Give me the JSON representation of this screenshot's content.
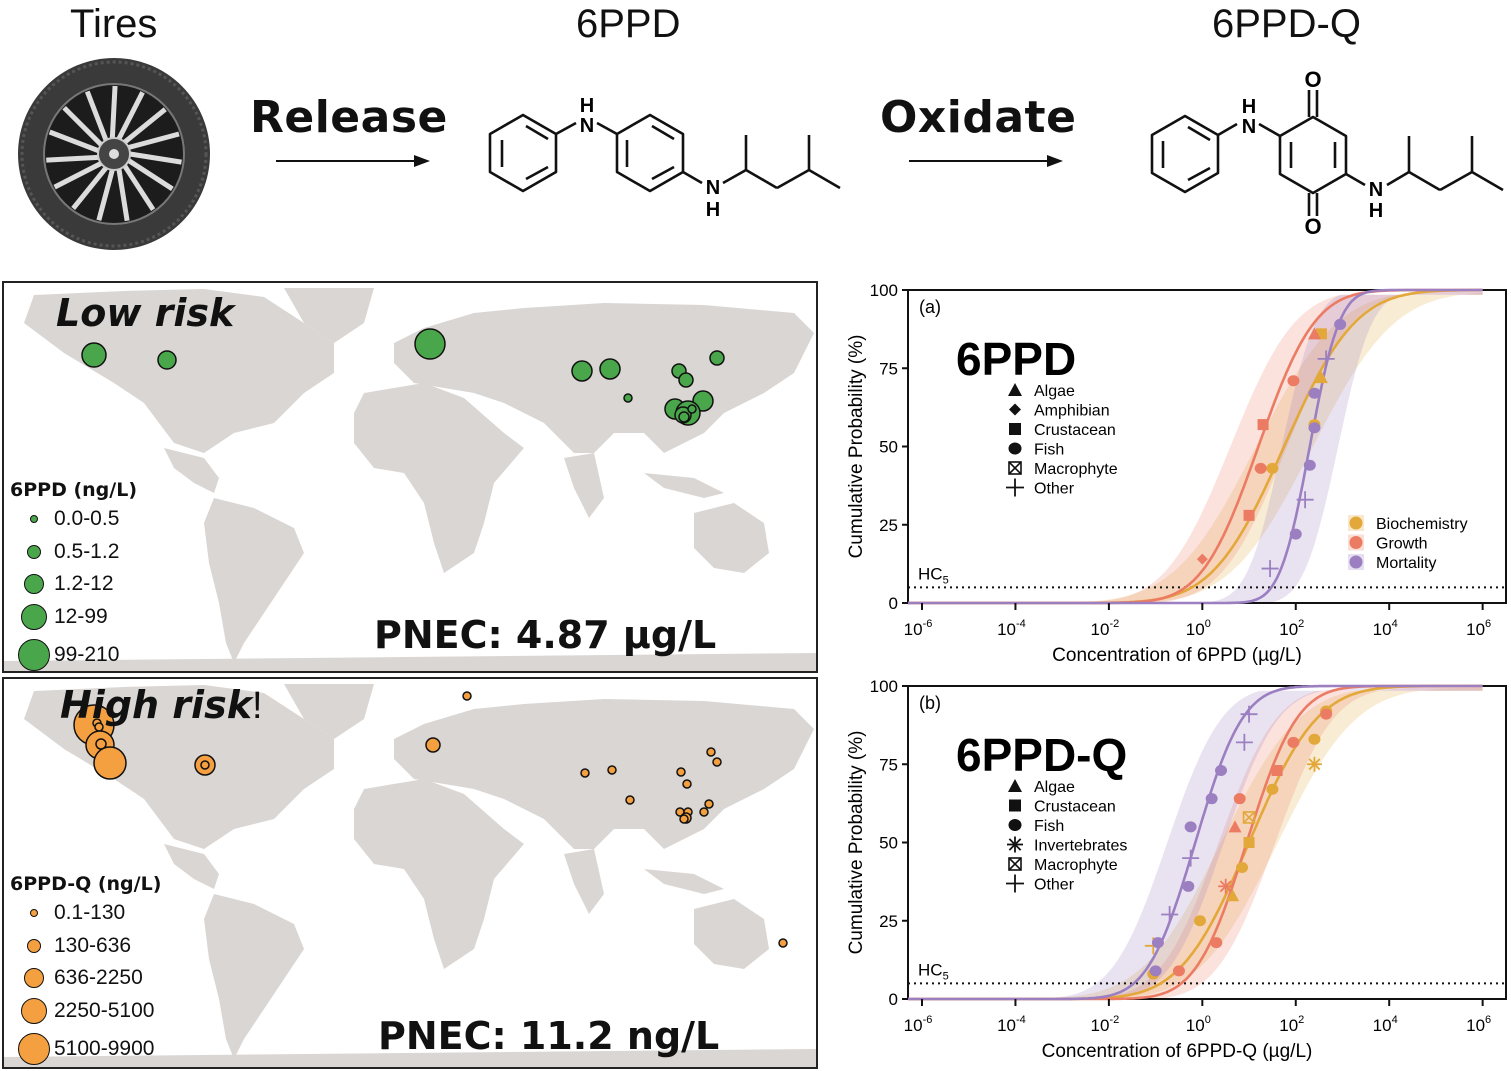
{
  "header": {
    "tires_label": "Tires",
    "release_label": "Release",
    "oxidate_label": "Oxidate",
    "compound1_name": "6PPD",
    "compound2_name": "6PPD-Q",
    "atoms": {
      "N": "N",
      "H": "H",
      "O": "O"
    }
  },
  "maps": [
    {
      "risk_label": "Low risk",
      "risk_suffix": "",
      "legend_title": "6PPD (ng/L)",
      "legend_items": [
        "0.0-0.5",
        "0.5-1.2",
        "1.2-12",
        "12-99",
        "99-210"
      ],
      "pnec_label": "PNEC: 4.87 µg/L",
      "marker_color": "#4aa64a"
    },
    {
      "risk_label": "High risk",
      "risk_suffix": "!",
      "legend_title": "6PPD-Q (ng/L)",
      "legend_items": [
        "0.1-130",
        "130-636",
        "636-2250",
        "2250-5100",
        "5100-9900"
      ],
      "pnec_label": "PNEC: 11.2 ng/L",
      "marker_color": "#f5a040"
    }
  ],
  "chart_data": [
    {
      "type": "line",
      "panel": "(a)",
      "title": "6PPD",
      "xlabel": "Concentration of 6PPD (µg/L)",
      "ylabel": "Cumulative Probability (%)",
      "xscale": "log10",
      "xlim_log10": [
        -6.3,
        6.5
      ],
      "ylim": [
        0,
        100
      ],
      "xticks": [
        "10^-6",
        "10^-4",
        "10^-2",
        "10^0",
        "10^2",
        "10^4",
        "10^6"
      ],
      "xtick_exponents": [
        -6,
        -4,
        -2,
        0,
        2,
        4,
        6
      ],
      "yticks": [
        0,
        25,
        50,
        75,
        100
      ],
      "hc5_label": "HC5",
      "hc5_value": 5,
      "species_legend": [
        "Algae",
        "Amphibian",
        "Crustacean",
        "Fish",
        "Macrophyte",
        "Other"
      ],
      "species_markers": [
        "triangle",
        "diamond",
        "square",
        "circle",
        "boxed-x",
        "plus"
      ],
      "endpoint_legend_position": "bottom-right",
      "series": [
        {
          "name": "Biochemistry",
          "color": "#e3a83a",
          "fit_log10_mean": 1.75,
          "fit_log10_sd": 1.2,
          "points": [
            {
              "x_log10": 1.5,
              "y": 43,
              "m": "circle"
            },
            {
              "x_log10": 2.4,
              "y": 57,
              "m": "circle"
            },
            {
              "x_log10": 2.55,
              "y": 72,
              "m": "triangle"
            },
            {
              "x_log10": 2.55,
              "y": 86,
              "m": "square"
            }
          ]
        },
        {
          "name": "Growth",
          "color": "#ec7b63",
          "fit_log10_mean": 1.2,
          "fit_log10_sd": 0.95,
          "points": [
            {
              "x_log10": 0.0,
              "y": 14,
              "m": "diamond"
            },
            {
              "x_log10": 1.0,
              "y": 28,
              "m": "square"
            },
            {
              "x_log10": 1.25,
              "y": 43,
              "m": "circle"
            },
            {
              "x_log10": 1.3,
              "y": 57,
              "m": "square"
            },
            {
              "x_log10": 1.95,
              "y": 71,
              "m": "circle"
            },
            {
              "x_log10": 2.4,
              "y": 86,
              "m": "triangle"
            }
          ]
        },
        {
          "name": "Mortality",
          "color": "#9b7fc1",
          "fit_log10_mean": 2.3,
          "fit_log10_sd": 0.5,
          "points": [
            {
              "x_log10": 1.45,
              "y": 11,
              "m": "plus"
            },
            {
              "x_log10": 2.0,
              "y": 22,
              "m": "circle"
            },
            {
              "x_log10": 2.2,
              "y": 33,
              "m": "plus"
            },
            {
              "x_log10": 2.3,
              "y": 44,
              "m": "circle"
            },
            {
              "x_log10": 2.4,
              "y": 56,
              "m": "circle"
            },
            {
              "x_log10": 2.4,
              "y": 67,
              "m": "circle"
            },
            {
              "x_log10": 2.65,
              "y": 78,
              "m": "plus"
            },
            {
              "x_log10": 2.95,
              "y": 89,
              "m": "circle"
            }
          ]
        }
      ]
    },
    {
      "type": "line",
      "panel": "(b)",
      "title": "6PPD-Q",
      "xlabel": "Concentration of 6PPD-Q (µg/L)",
      "ylabel": "Cumulative Probability (%)",
      "xscale": "log10",
      "xlim_log10": [
        -6.3,
        6.5
      ],
      "ylim": [
        0,
        100
      ],
      "xticks": [
        "10^-6",
        "10^-4",
        "10^-2",
        "10^0",
        "10^2",
        "10^4",
        "10^6"
      ],
      "xtick_exponents": [
        -6,
        -4,
        -2,
        0,
        2,
        4,
        6
      ],
      "yticks": [
        0,
        25,
        50,
        75,
        100
      ],
      "hc5_label": "HC5",
      "hc5_value": 5,
      "species_legend": [
        "Algae",
        "Crustacean",
        "Fish",
        "Invertebrates",
        "Macrophyte",
        "Other"
      ],
      "species_markers": [
        "triangle",
        "square",
        "circle",
        "asterisk",
        "boxed-x",
        "plus"
      ],
      "series": [
        {
          "name": "Biochemistry",
          "color": "#e3a83a",
          "fit_log10_mean": 1.0,
          "fit_log10_sd": 1.15,
          "points": [
            {
              "x_log10": -1.05,
              "y": 8,
              "m": "circle"
            },
            {
              "x_log10": -1.05,
              "y": 17,
              "m": "plus"
            },
            {
              "x_log10": -0.05,
              "y": 25,
              "m": "circle"
            },
            {
              "x_log10": 0.65,
              "y": 33,
              "m": "triangle"
            },
            {
              "x_log10": 0.85,
              "y": 42,
              "m": "circle"
            },
            {
              "x_log10": 1.0,
              "y": 50,
              "m": "square"
            },
            {
              "x_log10": 1.0,
              "y": 58,
              "m": "boxed-x"
            },
            {
              "x_log10": 1.5,
              "y": 67,
              "m": "circle"
            },
            {
              "x_log10": 2.4,
              "y": 75,
              "m": "asterisk"
            },
            {
              "x_log10": 2.4,
              "y": 83,
              "m": "circle"
            },
            {
              "x_log10": 2.65,
              "y": 92,
              "m": "circle"
            }
          ]
        },
        {
          "name": "Growth",
          "color": "#ec7b63",
          "fit_log10_mean": 0.95,
          "fit_log10_sd": 0.85,
          "points": [
            {
              "x_log10": -0.5,
              "y": 9,
              "m": "circle"
            },
            {
              "x_log10": 0.3,
              "y": 18,
              "m": "circle"
            },
            {
              "x_log10": 0.5,
              "y": 36,
              "m": "asterisk"
            },
            {
              "x_log10": 0.7,
              "y": 55,
              "m": "triangle"
            },
            {
              "x_log10": 0.8,
              "y": 64,
              "m": "circle"
            },
            {
              "x_log10": 1.6,
              "y": 73,
              "m": "square"
            },
            {
              "x_log10": 1.95,
              "y": 82,
              "m": "circle"
            },
            {
              "x_log10": 2.65,
              "y": 91,
              "m": "circle"
            }
          ]
        },
        {
          "name": "Mortality",
          "color": "#9b7fc1",
          "fit_log10_mean": -0.15,
          "fit_log10_sd": 0.8,
          "points": [
            {
              "x_log10": -1.0,
              "y": 9,
              "m": "circle"
            },
            {
              "x_log10": -0.95,
              "y": 18,
              "m": "circle"
            },
            {
              "x_log10": -0.7,
              "y": 27,
              "m": "plus"
            },
            {
              "x_log10": -0.3,
              "y": 36,
              "m": "circle"
            },
            {
              "x_log10": -0.25,
              "y": 45,
              "m": "plus"
            },
            {
              "x_log10": -0.25,
              "y": 55,
              "m": "circle"
            },
            {
              "x_log10": 0.2,
              "y": 64,
              "m": "circle"
            },
            {
              "x_log10": 0.4,
              "y": 73,
              "m": "circle"
            },
            {
              "x_log10": 0.9,
              "y": 82,
              "m": "plus"
            },
            {
              "x_log10": 1.0,
              "y": 91,
              "m": "plus"
            }
          ]
        }
      ]
    }
  ]
}
